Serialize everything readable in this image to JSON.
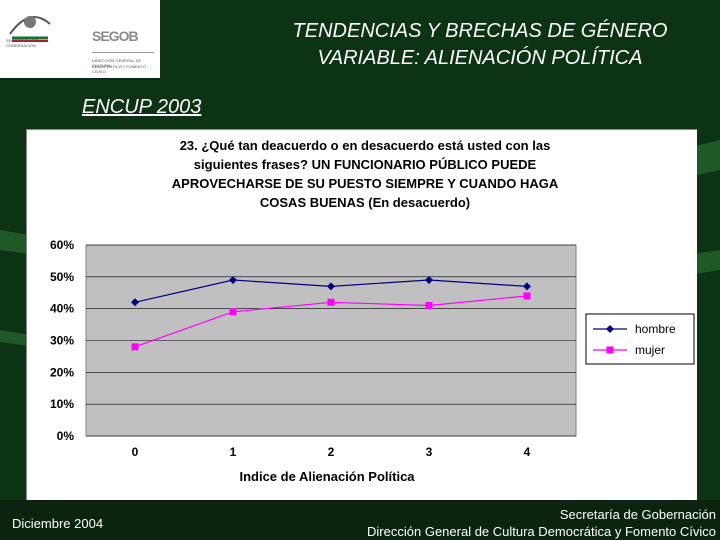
{
  "logo": {
    "brand": "SEGOB",
    "agency_line1": "SECRETARÍA DE",
    "agency_line2": "GOBERNACIÓN",
    "unit_line1": "DIRECCIÓN GENERAL DE CULTURA",
    "unit_line2": "DEMOCRÁTICA Y FOMENTO CÍVICO"
  },
  "header": {
    "title_line1": "TENDENCIAS Y BRECHAS DE GÉNERO",
    "title_line2": "VARIABLE: ALIENACIÓN POLÍTICA",
    "subtitle": "ENCUP 2003"
  },
  "footer": {
    "date": "Diciembre  2004",
    "org_line1": "Secretaría de Gobernación",
    "org_line2": "Dirección General de Cultura Democrática y Fomento Cívico"
  },
  "colors": {
    "background": "#0b2a12",
    "plot_area": "#c0c0c0",
    "hombre": "#000080",
    "mujer": "#ff00ff"
  },
  "chart_data": {
    "type": "line",
    "title_lines": [
      "23. ¿Qué tan deacuerdo o en desacuerdo está usted con las",
      "siguientes frases? UN FUNCIONARIO PÚBLICO PUEDE",
      "APROVECHARSE DE SU PUESTO SIEMPRE Y CUANDO HAGA",
      "COSAS BUENAS (En desacuerdo)"
    ],
    "xlabel": "Indice de Alienación Política",
    "ylabel": "",
    "categories": [
      "0",
      "1",
      "2",
      "3",
      "4"
    ],
    "ylim": [
      0,
      0.6
    ],
    "yticks": [
      "0%",
      "10%",
      "20%",
      "30%",
      "40%",
      "50%",
      "60%"
    ],
    "grid": true,
    "legend": "right",
    "series": [
      {
        "name": "hombre",
        "values": [
          0.42,
          0.49,
          0.47,
          0.49,
          0.47
        ]
      },
      {
        "name": "mujer",
        "values": [
          0.28,
          0.39,
          0.42,
          0.41,
          0.44
        ]
      }
    ]
  }
}
